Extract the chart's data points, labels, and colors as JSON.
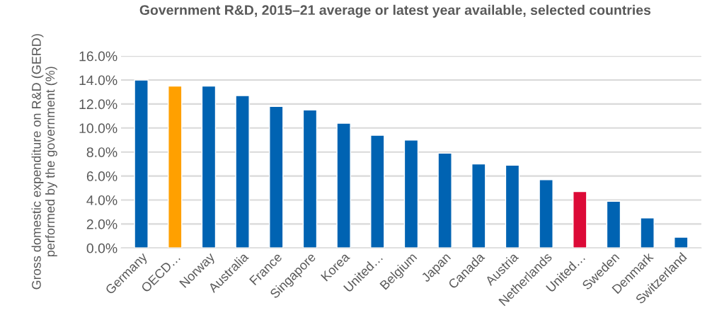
{
  "chart_data": {
    "type": "bar",
    "title": "Government R&D, 2015–21 average or latest year available, selected countries",
    "ylabel": "Gross domestic expenditure on R&D (GERD) performed by the government (%)",
    "categories": [
      "Germany",
      "OECD…",
      "Norway",
      "Australia",
      "France",
      "Singapore",
      "Korea",
      "United…",
      "Belgium",
      "Japan",
      "Canada",
      "Austria",
      "Netherlands",
      "United…",
      "Sweden",
      "Denmark",
      "Switzerland"
    ],
    "values": [
      14.0,
      13.5,
      13.5,
      12.7,
      11.8,
      11.5,
      10.4,
      9.4,
      9.0,
      7.9,
      7.0,
      6.9,
      5.7,
      4.7,
      3.9,
      2.5,
      0.9
    ],
    "colors": [
      "#0063b2",
      "#ffa000",
      "#0063b2",
      "#0063b2",
      "#0063b2",
      "#0063b2",
      "#0063b2",
      "#0063b2",
      "#0063b2",
      "#0063b2",
      "#0063b2",
      "#0063b2",
      "#0063b2",
      "#dc0a37",
      "#0063b2",
      "#0063b2",
      "#0063b2"
    ],
    "ylim": [
      0,
      16
    ],
    "yticks": [
      {
        "value": 0,
        "label": "0.0%"
      },
      {
        "value": 2,
        "label": "2.0%"
      },
      {
        "value": 4,
        "label": "4.0%"
      },
      {
        "value": 6,
        "label": "6.0%"
      },
      {
        "value": 8,
        "label": "8.0%"
      },
      {
        "value": 10,
        "label": "10.0%"
      },
      {
        "value": 12,
        "label": "12.0%"
      },
      {
        "value": 14,
        "label": "14.0%"
      },
      {
        "value": 16,
        "label": "16.0%"
      }
    ],
    "grid": "y",
    "legend": false
  }
}
